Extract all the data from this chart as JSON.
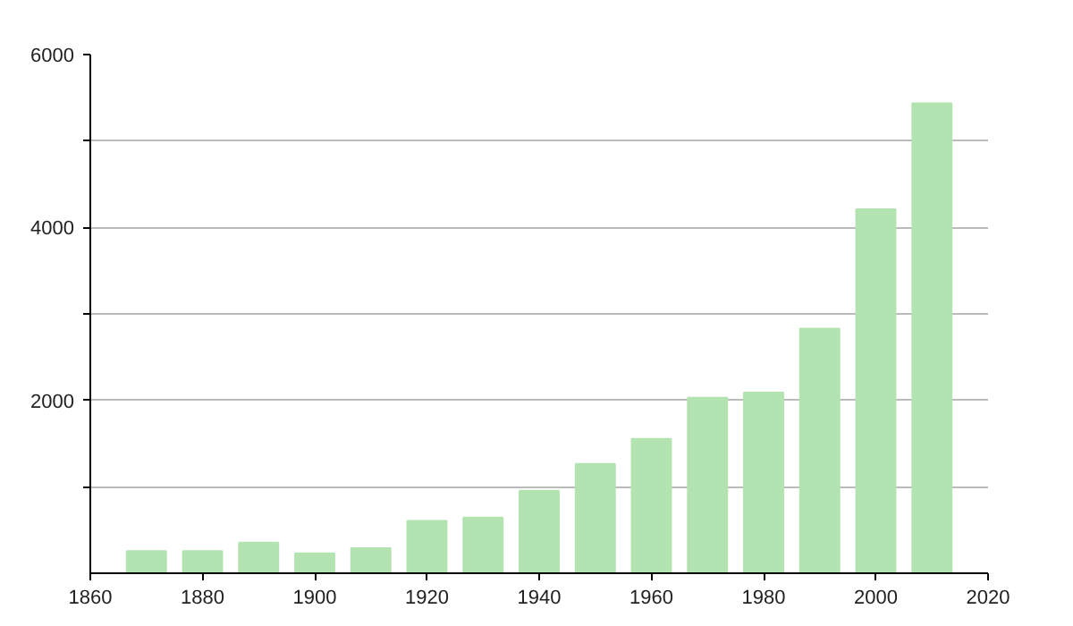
{
  "chart_data": {
    "type": "bar",
    "x": [
      1870,
      1880,
      1890,
      1900,
      1910,
      1920,
      1930,
      1940,
      1950,
      1960,
      1970,
      1980,
      1990,
      2000,
      2010
    ],
    "values": [
      255,
      255,
      355,
      230,
      290,
      605,
      645,
      955,
      1265,
      1555,
      2030,
      2090,
      2830,
      4210,
      5435
    ],
    "color": "#b3e3b0",
    "xlim": [
      1860,
      2020
    ],
    "ylim": [
      0,
      6000
    ],
    "xticks": [
      1860,
      1880,
      1900,
      1920,
      1940,
      1960,
      1980,
      2000,
      2020
    ],
    "yticks": [
      {
        "value": 1000,
        "label": null
      },
      2000,
      {
        "value": 3000,
        "label": null
      },
      4000,
      {
        "value": 5000,
        "label": null
      },
      6000
    ],
    "grid": "y"
  }
}
